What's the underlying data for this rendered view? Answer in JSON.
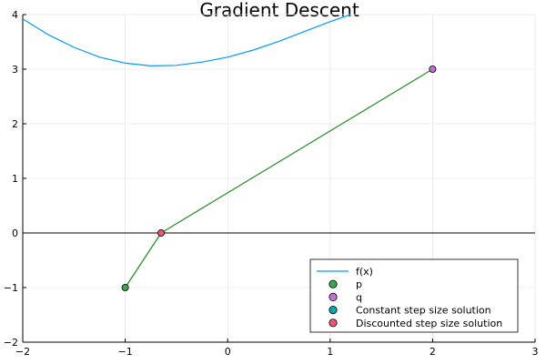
{
  "chart_data": {
    "type": "line",
    "title": "Gradient Descent",
    "xlabel": "",
    "ylabel": "",
    "xlim": [
      -2,
      3
    ],
    "ylim": [
      -2,
      4
    ],
    "x_ticks": [
      -2,
      -1,
      0,
      1,
      2,
      3
    ],
    "y_ticks": [
      -2,
      -1,
      0,
      1,
      2,
      3,
      4
    ],
    "x_tick_labels": [
      "−2",
      "−1",
      "0",
      "1",
      "2",
      "3"
    ],
    "y_tick_labels": [
      "−2",
      "−1",
      "0",
      "1",
      "2",
      "3",
      "4"
    ],
    "grid": true,
    "legend_position": "bottom-right",
    "horizontal_line_y": 0,
    "colors": {
      "fx": "#009AFA",
      "path": "#228B22",
      "p": "#3DA44D",
      "q": "#C271D2",
      "constant": "#00A9AD",
      "discounted": "#EF5675",
      "zero_line": "#000000",
      "grid": "#e6e6e6"
    },
    "series": [
      {
        "name": "f(x)",
        "kind": "line",
        "x": [
          -2,
          -1.75,
          -1.5,
          -1.25,
          -1,
          -0.75,
          -0.5,
          -0.25,
          0,
          0.25,
          0.5,
          0.75,
          1,
          1.2
        ],
        "y": [
          3.92,
          3.63,
          3.4,
          3.22,
          3.11,
          3.06,
          3.07,
          3.13,
          3.22,
          3.35,
          3.51,
          3.69,
          3.87,
          4.0
        ]
      },
      {
        "name": "",
        "kind": "line",
        "x": [
          -1,
          -0.65,
          2
        ],
        "y": [
          -1,
          0,
          3
        ]
      },
      {
        "name": "p",
        "kind": "point",
        "x": [
          -1
        ],
        "y": [
          -1
        ]
      },
      {
        "name": "q",
        "kind": "point",
        "x": [
          2
        ],
        "y": [
          3
        ]
      },
      {
        "name": "Constant step size solution",
        "kind": "point",
        "x": [],
        "y": []
      },
      {
        "name": "Discounted step size solution",
        "kind": "point",
        "x": [
          -0.65
        ],
        "y": [
          0
        ]
      }
    ],
    "legend": [
      {
        "label": "f(x)",
        "kind": "line",
        "color_key": "fx"
      },
      {
        "label": "p",
        "kind": "point",
        "color_key": "p"
      },
      {
        "label": "q",
        "kind": "point",
        "color_key": "q"
      },
      {
        "label": "Constant step size solution",
        "kind": "point",
        "color_key": "constant"
      },
      {
        "label": "Discounted step size solution",
        "kind": "point",
        "color_key": "discounted"
      }
    ]
  }
}
